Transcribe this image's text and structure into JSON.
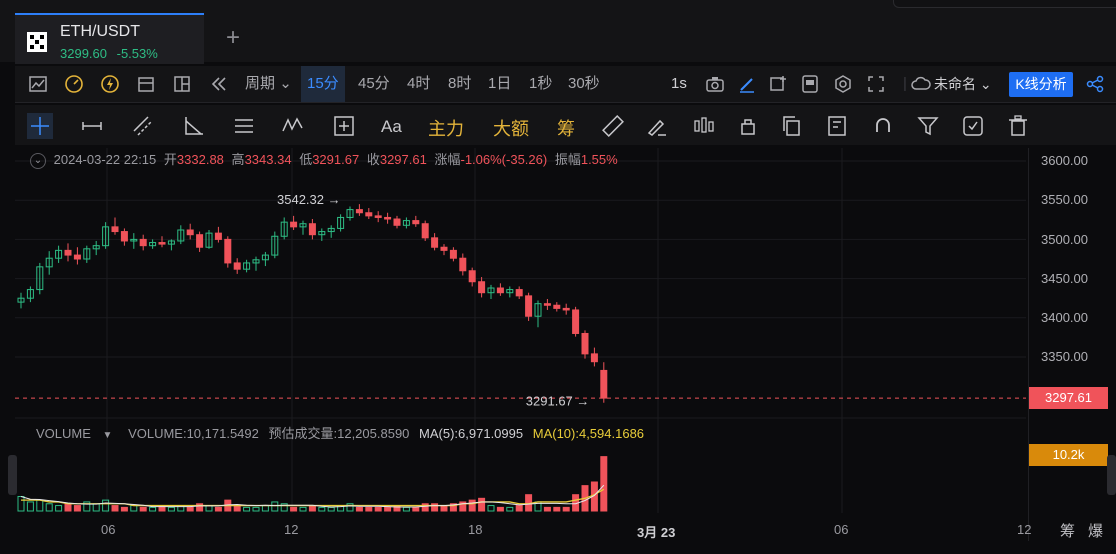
{
  "tab": {
    "pair": "ETH/USDT",
    "price": "3299.60",
    "change": "-5.53%"
  },
  "toolbar": {
    "period_label": "周期",
    "intervals": [
      "15分",
      "45分",
      "4时",
      "8时",
      "1日",
      "1秒",
      "30秒"
    ],
    "active_interval": "15分",
    "refresh": "1s",
    "layout_name": "未命名",
    "kline_button": "K线分析"
  },
  "drawing_tools": {
    "text_tool": "Aa",
    "main_force": "主力",
    "large_order": "大额",
    "chips": "筹"
  },
  "ohlc": {
    "datetime": "2024-03-22 22:15",
    "open_label": "开",
    "open": "3332.88",
    "high_label": "高",
    "high": "3343.34",
    "low_label": "低",
    "low": "3291.67",
    "close_label": "收",
    "close": "3297.61",
    "change_label": "涨幅",
    "change": "-1.06%(-35.26)",
    "amp_label": "振幅",
    "amp": "1.55%"
  },
  "annotations": {
    "high_marker": "3542.32",
    "low_marker": "3291.67"
  },
  "volume": {
    "label": "VOLUME",
    "volume": "VOLUME:10,171.5492",
    "estimated": "预估成交量:12,205.8590",
    "ma5": "MA(5):6,971.0995",
    "ma10": "MA(10):4,594.1686"
  },
  "axis": {
    "y_ticks": [
      "3600.00",
      "3550.00",
      "3500.00",
      "3450.00",
      "3400.00",
      "3350.00"
    ],
    "current_price": "3297.61",
    "volume_tag": "10.2k",
    "x_ticks": [
      "06",
      "12",
      "18",
      "3月 23",
      "06",
      "12"
    ]
  },
  "bottom": {
    "chips_label": "筹",
    "burst_label": "爆"
  },
  "colors": {
    "up": "#2ebd85",
    "down": "#f0535a",
    "accent": "#1e6ef3",
    "ma10": "#e8cd3a"
  },
  "chart_data": {
    "type": "candlestick",
    "ylim": [
      3290,
      3610
    ],
    "candles": [
      [
        3420,
        3432,
        3412,
        3425
      ],
      [
        3425,
        3440,
        3420,
        3436
      ],
      [
        3436,
        3470,
        3430,
        3465
      ],
      [
        3465,
        3485,
        3455,
        3476
      ],
      [
        3476,
        3492,
        3470,
        3486
      ],
      [
        3486,
        3495,
        3472,
        3480
      ],
      [
        3480,
        3490,
        3468,
        3475
      ],
      [
        3475,
        3492,
        3470,
        3488
      ],
      [
        3488,
        3498,
        3480,
        3492
      ],
      [
        3492,
        3522,
        3488,
        3516
      ],
      [
        3516,
        3528,
        3506,
        3510
      ],
      [
        3510,
        3514,
        3492,
        3498
      ],
      [
        3498,
        3508,
        3488,
        3500
      ],
      [
        3500,
        3506,
        3486,
        3492
      ],
      [
        3492,
        3500,
        3488,
        3496
      ],
      [
        3496,
        3504,
        3490,
        3494
      ],
      [
        3494,
        3500,
        3486,
        3498
      ],
      [
        3498,
        3518,
        3494,
        3512
      ],
      [
        3512,
        3520,
        3500,
        3506
      ],
      [
        3506,
        3510,
        3484,
        3490
      ],
      [
        3490,
        3512,
        3488,
        3508
      ],
      [
        3508,
        3516,
        3496,
        3500
      ],
      [
        3500,
        3504,
        3464,
        3470
      ],
      [
        3470,
        3476,
        3456,
        3462
      ],
      [
        3462,
        3474,
        3458,
        3470
      ],
      [
        3470,
        3478,
        3460,
        3474
      ],
      [
        3474,
        3484,
        3466,
        3480
      ],
      [
        3480,
        3510,
        3476,
        3504
      ],
      [
        3504,
        3528,
        3500,
        3522
      ],
      [
        3522,
        3530,
        3512,
        3516
      ],
      [
        3516,
        3524,
        3506,
        3520
      ],
      [
        3520,
        3526,
        3500,
        3506
      ],
      [
        3506,
        3514,
        3498,
        3510
      ],
      [
        3510,
        3518,
        3502,
        3514
      ],
      [
        3514,
        3532,
        3510,
        3528
      ],
      [
        3528,
        3542,
        3524,
        3538
      ],
      [
        3538,
        3545,
        3530,
        3534
      ],
      [
        3534,
        3540,
        3526,
        3530
      ],
      [
        3530,
        3536,
        3522,
        3528
      ],
      [
        3528,
        3534,
        3520,
        3526
      ],
      [
        3526,
        3530,
        3514,
        3518
      ],
      [
        3518,
        3528,
        3514,
        3524
      ],
      [
        3524,
        3530,
        3516,
        3520
      ],
      [
        3520,
        3524,
        3498,
        3502
      ],
      [
        3502,
        3508,
        3486,
        3490
      ],
      [
        3490,
        3494,
        3480,
        3486
      ],
      [
        3486,
        3490,
        3472,
        3476
      ],
      [
        3476,
        3482,
        3454,
        3460
      ],
      [
        3460,
        3464,
        3440,
        3446
      ],
      [
        3446,
        3452,
        3426,
        3432
      ],
      [
        3432,
        3442,
        3424,
        3438
      ],
      [
        3438,
        3444,
        3428,
        3432
      ],
      [
        3432,
        3440,
        3426,
        3436
      ],
      [
        3436,
        3440,
        3424,
        3428
      ],
      [
        3428,
        3432,
        3396,
        3402
      ],
      [
        3402,
        3422,
        3388,
        3418
      ],
      [
        3418,
        3424,
        3410,
        3416
      ],
      [
        3416,
        3420,
        3408,
        3412
      ],
      [
        3412,
        3418,
        3404,
        3410
      ],
      [
        3410,
        3414,
        3376,
        3380
      ],
      [
        3380,
        3384,
        3348,
        3354
      ],
      [
        3354,
        3362,
        3338,
        3344
      ],
      [
        3332.88,
        3343.34,
        3291.67,
        3297.61
      ]
    ],
    "volumes": [
      8,
      5,
      6,
      4,
      3,
      4,
      3,
      5,
      4,
      6,
      3,
      2,
      3,
      2,
      2,
      3,
      2,
      3,
      2,
      4,
      3,
      2,
      6,
      3,
      2,
      2,
      3,
      5,
      4,
      2,
      2,
      3,
      2,
      2,
      3,
      4,
      2,
      2,
      2,
      2,
      3,
      2,
      2,
      4,
      4,
      3,
      4,
      5,
      6,
      7,
      3,
      2,
      2,
      3,
      9,
      5,
      2,
      2,
      2,
      9,
      14,
      16,
      30
    ],
    "ma10": [
      6,
      6,
      6,
      5,
      5,
      4,
      4,
      4,
      4,
      4,
      4,
      4,
      3,
      3,
      3,
      3,
      3,
      3,
      3,
      3,
      3,
      3,
      3,
      3,
      3,
      3,
      3,
      3,
      3,
      3,
      3,
      3,
      3,
      3,
      3,
      3,
      3,
      3,
      3,
      3,
      3,
      3,
      3,
      3,
      3,
      3,
      3,
      4,
      4,
      5,
      5,
      5,
      5,
      4,
      4,
      5,
      5,
      5,
      5,
      6,
      7,
      9,
      12
    ],
    "vol_max": 32
  }
}
